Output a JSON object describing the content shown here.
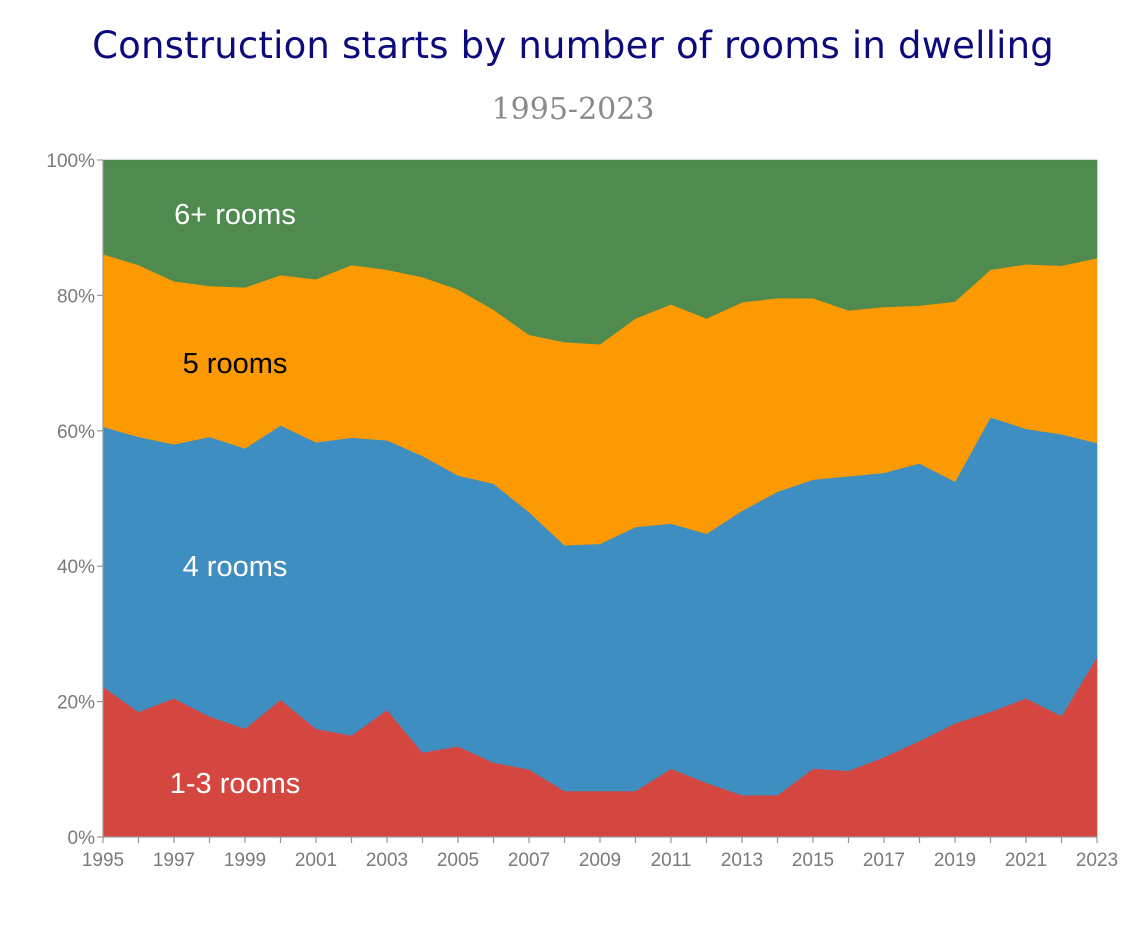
{
  "page": {
    "title": "Construction starts by number of rooms in dwelling",
    "subtitle": "1995-2023"
  },
  "chart_data": {
    "type": "area",
    "stacked": true,
    "percent": true,
    "title": "Construction starts by number of rooms in dwelling",
    "subtitle": "1995-2023",
    "x": [
      1995,
      1996,
      1997,
      1998,
      1999,
      2000,
      2001,
      2002,
      2003,
      2004,
      2005,
      2006,
      2007,
      2008,
      2009,
      2010,
      2011,
      2012,
      2013,
      2014,
      2015,
      2016,
      2017,
      2018,
      2019,
      2020,
      2021,
      2022,
      2023
    ],
    "x_tick_labels": [
      "1995",
      "1997",
      "1999",
      "2001",
      "2003",
      "2005",
      "2007",
      "2009",
      "2011",
      "2013",
      "2015",
      "2017",
      "2019",
      "2021",
      "2023"
    ],
    "y_tick_labels": [
      "0%",
      "20%",
      "40%",
      "60%",
      "80%",
      "100%"
    ],
    "ylim": [
      0,
      100
    ],
    "grid": false,
    "legend": "none",
    "series": [
      {
        "name": "1-3 rooms",
        "color": "#d44740",
        "values": [
          22.2,
          18.5,
          20.5,
          17.8,
          16.0,
          20.3,
          16.0,
          15.0,
          18.8,
          12.5,
          13.4,
          11.0,
          10.0,
          6.8,
          6.8,
          6.8,
          10.1,
          8.0,
          6.2,
          6.2,
          10.1,
          9.8,
          11.8,
          14.2,
          16.8,
          18.5,
          20.5,
          17.9,
          26.6
        ]
      },
      {
        "name": "4 rooms",
        "color": "#3f8ec1",
        "values": [
          38.4,
          40.6,
          37.5,
          41.3,
          41.4,
          40.5,
          42.3,
          44.0,
          39.8,
          43.8,
          40.0,
          41.2,
          38.0,
          36.3,
          36.5,
          39.0,
          36.2,
          36.8,
          42.0,
          44.8,
          42.7,
          43.5,
          42.0,
          41.0,
          35.7,
          43.5,
          39.8,
          41.6,
          31.6
        ]
      },
      {
        "name": "5 rooms",
        "color": "#fb9a02",
        "values": [
          25.5,
          25.4,
          24.1,
          22.3,
          23.8,
          22.2,
          24.1,
          25.5,
          25.2,
          26.4,
          27.5,
          25.7,
          26.2,
          30.0,
          29.5,
          30.8,
          32.4,
          31.8,
          30.8,
          28.6,
          26.8,
          24.5,
          24.5,
          23.3,
          26.6,
          21.8,
          24.3,
          24.9,
          27.3
        ]
      },
      {
        "name": "6+ rooms",
        "color": "#4f8a4f",
        "values": [
          13.9,
          15.5,
          17.9,
          18.6,
          18.8,
          17.0,
          17.6,
          15.5,
          16.2,
          17.3,
          19.1,
          22.1,
          25.8,
          26.9,
          27.2,
          23.4,
          21.3,
          23.4,
          21.0,
          20.4,
          20.4,
          22.2,
          21.7,
          21.5,
          20.9,
          16.2,
          15.4,
          15.6,
          14.5
        ]
      }
    ],
    "area_labels": [
      {
        "text": "6+ rooms",
        "color": "#ffffff",
        "year": 1999.0,
        "y": 92
      },
      {
        "text": "5 rooms",
        "color": "#000000",
        "year": 1999.0,
        "y": 70
      },
      {
        "text": "4 rooms",
        "color": "#ffffff",
        "year": 1999.0,
        "y": 40
      },
      {
        "text": "1-3 rooms",
        "color": "#ffffff",
        "year": 1999.0,
        "y": 8
      }
    ],
    "axis_color": "#9a9a9a"
  }
}
